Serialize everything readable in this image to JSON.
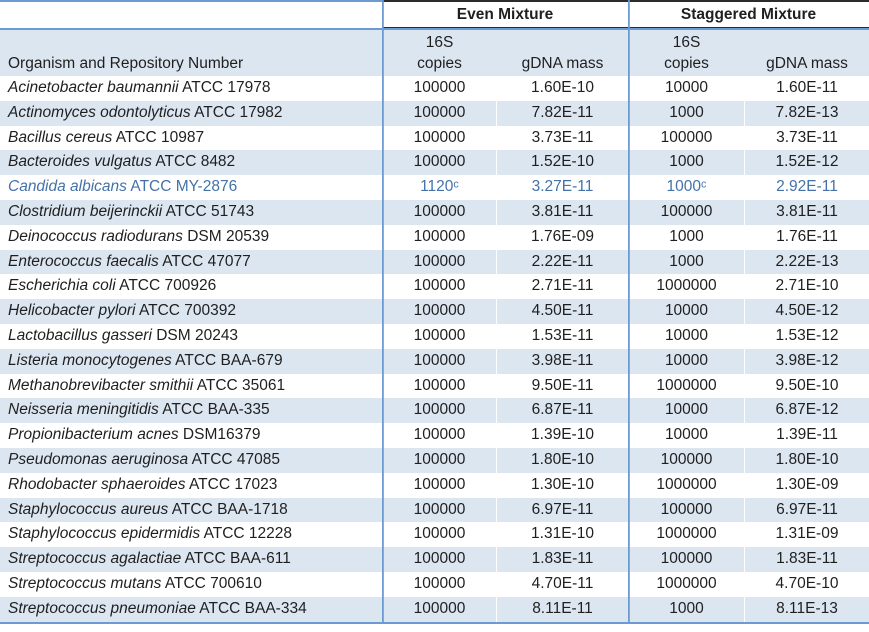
{
  "header": {
    "organism_col": "Organism and Repository Number",
    "groups": [
      {
        "label": "Even Mixture"
      },
      {
        "label": "Staggered Mixture"
      }
    ],
    "sub": {
      "copies_top": "16S",
      "copies_bottom": "copies",
      "gdna": "gDNA mass"
    }
  },
  "rows": [
    {
      "species": "Acinetobacter baumannii",
      "repo": "ATCC 17978",
      "even_copies": "100000",
      "even_gdna": "1.60E-10",
      "stag_copies": "10000",
      "stag_gdna": "1.60E-11"
    },
    {
      "species": "Actinomyces odontolyticus",
      "repo": "ATCC 17982",
      "even_copies": "100000",
      "even_gdna": "7.82E-11",
      "stag_copies": "1000",
      "stag_gdna": "7.82E-13"
    },
    {
      "species": "Bacillus cereus",
      "repo": "ATCC 10987",
      "even_copies": "100000",
      "even_gdna": "3.73E-11",
      "stag_copies": "100000",
      "stag_gdna": "3.73E-11"
    },
    {
      "species": "Bacteroides vulgatus",
      "repo": "ATCC 8482",
      "even_copies": "100000",
      "even_gdna": "1.52E-10",
      "stag_copies": "1000",
      "stag_gdna": "1.52E-12"
    },
    {
      "species": "Candida albicans",
      "repo": "ATCC MY-2876",
      "even_copies": "1120ᶜ",
      "even_gdna": "3.27E-11",
      "stag_copies": "1000ᶜ",
      "stag_gdna": "2.92E-11",
      "highlight": true
    },
    {
      "species": "Clostridium beijerinckii",
      "repo": "ATCC 51743",
      "even_copies": "100000",
      "even_gdna": "3.81E-11",
      "stag_copies": "100000",
      "stag_gdna": "3.81E-11"
    },
    {
      "species": "Deinococcus radiodurans",
      "repo": "DSM 20539",
      "even_copies": "100000",
      "even_gdna": "1.76E-09",
      "stag_copies": "1000",
      "stag_gdna": "1.76E-11"
    },
    {
      "species": "Enterococcus faecalis",
      "repo": "ATCC 47077",
      "even_copies": "100000",
      "even_gdna": "2.22E-11",
      "stag_copies": "1000",
      "stag_gdna": "2.22E-13"
    },
    {
      "species": "Escherichia coli",
      "repo": "ATCC 700926",
      "even_copies": "100000",
      "even_gdna": "2.71E-11",
      "stag_copies": "1000000",
      "stag_gdna": "2.71E-10"
    },
    {
      "species": "Helicobacter pylori",
      "repo": "ATCC 700392",
      "even_copies": "100000",
      "even_gdna": "4.50E-11",
      "stag_copies": "10000",
      "stag_gdna": "4.50E-12"
    },
    {
      "species": "Lactobacillus gasseri",
      "repo": "DSM 20243",
      "even_copies": "100000",
      "even_gdna": "1.53E-11",
      "stag_copies": "10000",
      "stag_gdna": "1.53E-12"
    },
    {
      "species": "Listeria monocytogenes",
      "repo": "ATCC BAA-679",
      "even_copies": "100000",
      "even_gdna": "3.98E-11",
      "stag_copies": "10000",
      "stag_gdna": "3.98E-12"
    },
    {
      "species": "Methanobrevibacter smithii",
      "repo": "ATCC 35061",
      "even_copies": "100000",
      "even_gdna": "9.50E-11",
      "stag_copies": "1000000",
      "stag_gdna": "9.50E-10"
    },
    {
      "species": "Neisseria meningitidis",
      "repo": "ATCC BAA-335",
      "even_copies": "100000",
      "even_gdna": "6.87E-11",
      "stag_copies": "10000",
      "stag_gdna": "6.87E-12"
    },
    {
      "species": "Propionibacterium acnes",
      "repo": "DSM16379",
      "even_copies": "100000",
      "even_gdna": "1.39E-10",
      "stag_copies": "10000",
      "stag_gdna": "1.39E-11"
    },
    {
      "species": "Pseudomonas aeruginosa",
      "repo": "ATCC 47085",
      "even_copies": "100000",
      "even_gdna": "1.80E-10",
      "stag_copies": "100000",
      "stag_gdna": "1.80E-10"
    },
    {
      "species": "Rhodobacter sphaeroides",
      "repo": "ATCC 17023",
      "even_copies": "100000",
      "even_gdna": "1.30E-10",
      "stag_copies": "1000000",
      "stag_gdna": "1.30E-09"
    },
    {
      "species": "Staphylococcus aureus",
      "repo": "ATCC BAA-1718",
      "even_copies": "100000",
      "even_gdna": "6.97E-11",
      "stag_copies": "100000",
      "stag_gdna": "6.97E-11"
    },
    {
      "species": "Staphylococcus epidermidis",
      "repo": "ATCC 12228",
      "even_copies": "100000",
      "even_gdna": "1.31E-10",
      "stag_copies": "1000000",
      "stag_gdna": "1.31E-09"
    },
    {
      "species": "Streptococcus agalactiae",
      "repo": "ATCC BAA-611",
      "even_copies": "100000",
      "even_gdna": "1.83E-11",
      "stag_copies": "100000",
      "stag_gdna": "1.83E-11"
    },
    {
      "species": "Streptococcus mutans",
      "repo": "ATCC 700610",
      "even_copies": "100000",
      "even_gdna": "4.70E-11",
      "stag_copies": "1000000",
      "stag_gdna": "4.70E-10"
    },
    {
      "species": "Streptococcus pneumoniae",
      "repo": "ATCC BAA-334",
      "even_copies": "100000",
      "even_gdna": "8.11E-11",
      "stag_copies": "1000",
      "stag_gdna": "8.11E-13"
    }
  ],
  "colors": {
    "stripe": "#dce6f1",
    "border_blue": "#6d9ad0",
    "rule_black": "#2b2b2b",
    "text": "#1f1f1f",
    "highlight_text": "#4472a8"
  }
}
